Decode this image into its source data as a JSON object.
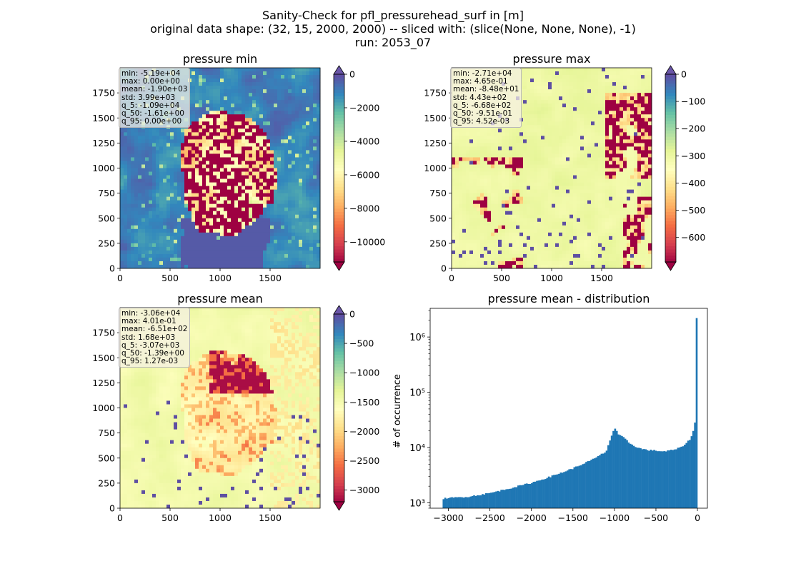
{
  "figure": {
    "title_lines": [
      "Sanity-Check for pfl_pressurehead_surf in [m]",
      "original data shape: (32, 15, 2000, 2000) -- sliced with: (slice(None, None, None), -1)",
      "run: 2053_07"
    ]
  },
  "chart_data": [
    {
      "type": "heatmap",
      "title": "pressure min",
      "colormap": "Spectral",
      "xlim": [
        0,
        2000
      ],
      "ylim": [
        0,
        2000
      ],
      "xticks": [
        0,
        500,
        1000,
        1500
      ],
      "yticks": [
        0,
        250,
        500,
        750,
        1000,
        1250,
        1500,
        1750
      ],
      "colorbar": {
        "range": [
          -11200,
          0
        ],
        "ticks": [
          0,
          -2000,
          -4000,
          -6000,
          -8000,
          -10000
        ],
        "extend": "both",
        "over_color": "#6a55a8",
        "under_color": "#9e0142"
      },
      "stats": [
        "min: -5.19e+04",
        "max: 0.00e+00",
        "mean: -1.90e+03",
        "std: 3.99e+03",
        "q_5: -1.09e+04",
        "q_50: -1.61e+00",
        "q_95: 0.00e+00"
      ]
    },
    {
      "type": "heatmap",
      "title": "pressure max",
      "colormap": "Spectral",
      "xlim": [
        0,
        2000
      ],
      "ylim": [
        0,
        2000
      ],
      "xticks": [
        0,
        500,
        1000,
        1500
      ],
      "yticks": [
        0,
        250,
        500,
        750,
        1000,
        1250,
        1500,
        1750
      ],
      "colorbar": {
        "range": [
          -690,
          0
        ],
        "ticks": [
          0,
          -100,
          -200,
          -300,
          -400,
          -500,
          -600
        ],
        "extend": "both",
        "over_color": "#6a55a8",
        "under_color": "#9e0142"
      },
      "stats": [
        "min: -2.71e+04",
        "max: 4.65e-01",
        "mean: -8.48e+01",
        "std: 4.43e+02",
        "q_5: -6.68e+02",
        "q_50: -9.51e-01",
        "q_95: 4.52e-03"
      ]
    },
    {
      "type": "heatmap",
      "title": "pressure mean",
      "colormap": "Spectral",
      "xlim": [
        0,
        2000
      ],
      "ylim": [
        0,
        2000
      ],
      "xticks": [
        0,
        500,
        1000,
        1500
      ],
      "yticks": [
        0,
        250,
        500,
        750,
        1000,
        1250,
        1500,
        1750
      ],
      "colorbar": {
        "range": [
          -3200,
          0
        ],
        "ticks": [
          0,
          -500,
          -1000,
          -1500,
          -2000,
          -2500,
          -3000
        ],
        "extend": "both",
        "over_color": "#6a55a8",
        "under_color": "#9e0142"
      },
      "stats": [
        "min: -3.06e+04",
        "max: 4.01e-01",
        "mean: -6.51e+02",
        "std: 1.68e+03",
        "q_5: -3.07e+03",
        "q_50: -1.39e+00",
        "q_95: 1.27e-03"
      ]
    },
    {
      "type": "bar",
      "title": "pressure mean - distribution",
      "xlabel": "",
      "ylabel": "# of occurrence",
      "yscale": "log",
      "xlim": [
        -3220,
        120
      ],
      "ylim": [
        800,
        3300000
      ],
      "xticks": [
        -3000,
        -2500,
        -2000,
        -1500,
        -1000,
        -500,
        0
      ],
      "yticks": [
        1000,
        10000,
        100000,
        1000000
      ],
      "ytick_labels": [
        "10³",
        "10⁴",
        "10⁵",
        "10⁶"
      ],
      "bar_color": "#1f77b4",
      "bin_range": [
        -3070,
        0
      ],
      "bin_count": 150,
      "x": [
        -3060,
        -2750,
        -2500,
        -2250,
        -2000,
        -1750,
        -1500,
        -1250,
        -1100,
        -1000,
        -950,
        -900,
        -800,
        -700,
        -600,
        -500,
        -400,
        -300,
        -200,
        -100,
        -60,
        -40,
        -20,
        -5,
        0
      ],
      "values": [
        1200,
        1300,
        1500,
        1850,
        2300,
        3050,
        4200,
        6200,
        8500,
        23000,
        17000,
        15500,
        11500,
        9700,
        9000,
        8800,
        8500,
        9000,
        10000,
        13500,
        17000,
        24000,
        34000,
        54000,
        2200000
      ]
    }
  ]
}
